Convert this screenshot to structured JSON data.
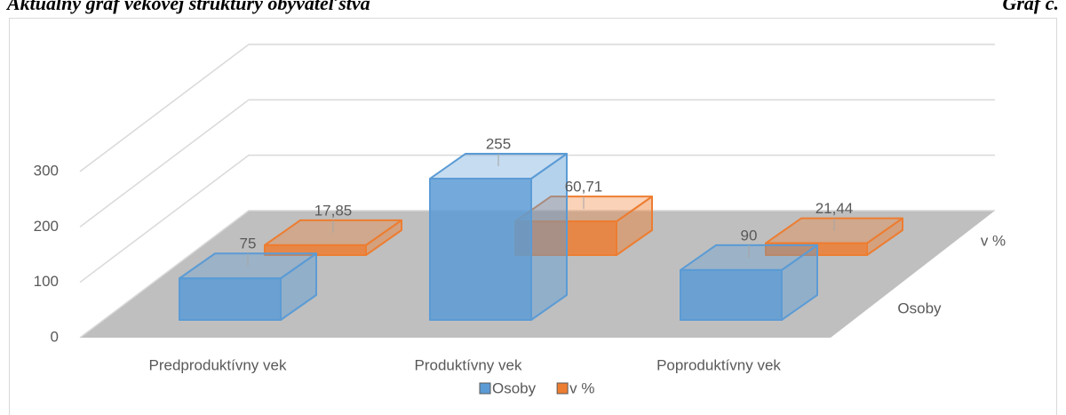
{
  "header": {
    "title": "Aktuálny graf vekovej štruktúry obyvateľstva",
    "label": "Graf č."
  },
  "chart_data": {
    "type": "bar3d",
    "categories": [
      "Predproduktívny vek",
      "Produktívny vek",
      "Poproduktívny vek"
    ],
    "series": [
      {
        "name": "Osoby",
        "color": "#5b9bd5",
        "values": [
          75,
          255,
          90
        ]
      },
      {
        "name": "v %",
        "color": "#ed7d31",
        "values": [
          17.85,
          60.71,
          21.44
        ],
        "value_labels": [
          "17,85",
          "60,71",
          "21,44"
        ]
      }
    ],
    "ylim": [
      0,
      300
    ],
    "yticks": [
      0,
      100,
      200,
      300
    ],
    "grid": true,
    "legend": "bottom"
  }
}
